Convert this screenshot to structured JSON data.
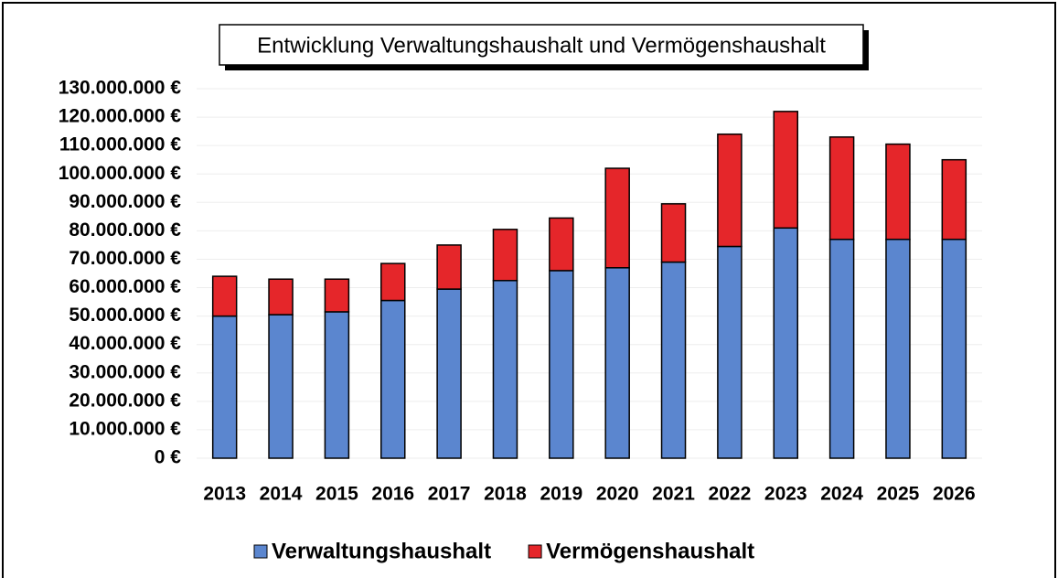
{
  "chart_data": {
    "type": "stacked_bar",
    "title": "Entwicklung Verwaltungshaushalt und Vermögenshaushalt",
    "categories": [
      "2013",
      "2014",
      "2015",
      "2016",
      "2017",
      "2018",
      "2019",
      "2020",
      "2021",
      "2022",
      "2023",
      "2024",
      "2025",
      "2026"
    ],
    "series": [
      {
        "name": "Verwaltungshaushalt",
        "color": "#5b86cf",
        "values": [
          50000000,
          50500000,
          51500000,
          55500000,
          59500000,
          62500000,
          66000000,
          67000000,
          69000000,
          74500000,
          81000000,
          77000000,
          77000000,
          77000000
        ]
      },
      {
        "name": "Vermögenshaushalt",
        "color": "#e5262a",
        "values": [
          14000000,
          12500000,
          11500000,
          13000000,
          15500000,
          18000000,
          18500000,
          35000000,
          20500000,
          39500000,
          41000000,
          36000000,
          33500000,
          28000000
        ]
      }
    ],
    "ylim": [
      0,
      130000000
    ],
    "yticks": [
      {
        "value": 0,
        "label": "0 €"
      },
      {
        "value": 10000000,
        "label": "10.000.000 €"
      },
      {
        "value": 20000000,
        "label": "20.000.000 €"
      },
      {
        "value": 30000000,
        "label": "30.000.000 €"
      },
      {
        "value": 40000000,
        "label": "40.000.000 €"
      },
      {
        "value": 50000000,
        "label": "50.000.000 €"
      },
      {
        "value": 60000000,
        "label": "60.000.000 €"
      },
      {
        "value": 70000000,
        "label": "70.000.000 €"
      },
      {
        "value": 80000000,
        "label": "80.000.000 €"
      },
      {
        "value": 90000000,
        "label": "90.000.000 €"
      },
      {
        "value": 100000000,
        "label": "100.000.000 €"
      },
      {
        "value": 110000000,
        "label": "110.000.000 €"
      },
      {
        "value": 120000000,
        "label": "120.000.000 €"
      },
      {
        "value": 130000000,
        "label": "130.000.000 €"
      }
    ],
    "grid": true,
    "legend": "bottom"
  }
}
